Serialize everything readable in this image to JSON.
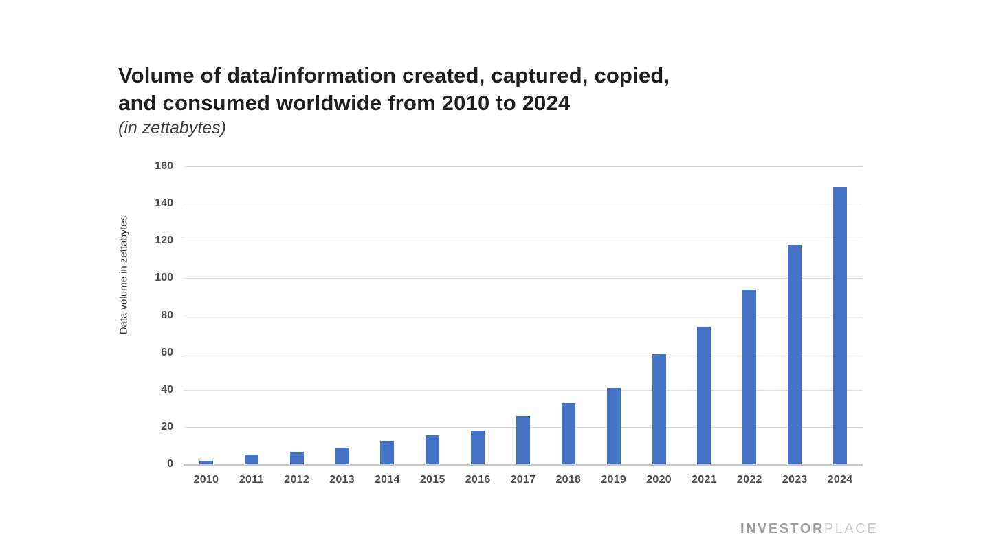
{
  "header": {
    "title_line1": "Volume of data/information created, captured, copied,",
    "title_line2": "and consumed worldwide from 2010 to 2024",
    "subtitle": "(in zettabytes)"
  },
  "chart_data": {
    "type": "bar",
    "title": "Volume of data/information created, captured, copied, and consumed worldwide from 2010 to 2024",
    "subtitle": "(in zettabytes)",
    "categories": [
      "2010",
      "2011",
      "2012",
      "2013",
      "2014",
      "2015",
      "2016",
      "2017",
      "2018",
      "2019",
      "2020",
      "2021",
      "2022",
      "2023",
      "2024"
    ],
    "values": [
      2,
      5,
      6.5,
      9,
      12.5,
      15.5,
      18,
      26,
      33,
      41,
      59,
      74,
      94,
      118,
      149
    ],
    "xlabel": "",
    "ylabel": "Data volume in zettabytes",
    "ylim": [
      0,
      160
    ],
    "yticks": [
      0,
      20,
      40,
      60,
      80,
      100,
      120,
      140,
      160
    ],
    "grid": true,
    "legend": false,
    "bar_color": "#4472C4",
    "gridline_color": "#dedede",
    "axis_line_color": "#c9c9c9",
    "tick_label_color": "#4d4d4d"
  },
  "branding": {
    "bold": "INVESTOR",
    "light": "PLACE"
  }
}
